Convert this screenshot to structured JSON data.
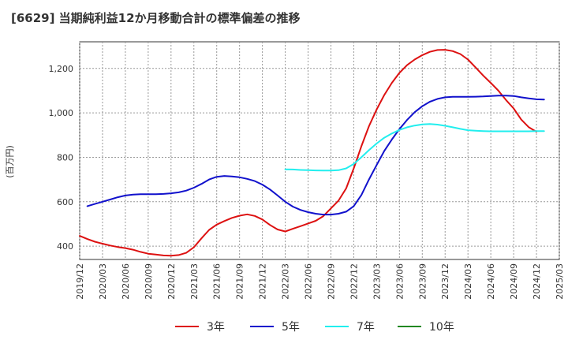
{
  "chart_data": {
    "type": "line",
    "title": "[6629]  当期純利益12か月移動合計の標準偏差の推移",
    "ylabel": "(百万円)",
    "xlabel": "",
    "ylim": [
      340,
      1320
    ],
    "yticks": [
      400,
      600,
      800,
      1000,
      1200
    ],
    "ytick_labels": [
      "400",
      "600",
      "800",
      "1,000",
      "1,200"
    ],
    "xticks": [
      "2019/12",
      "2020/03",
      "2020/06",
      "2020/09",
      "2020/12",
      "2021/03",
      "2021/06",
      "2021/09",
      "2021/12",
      "2022/03",
      "2022/06",
      "2022/09",
      "2022/12",
      "2023/03",
      "2023/06",
      "2023/09",
      "2023/12",
      "2024/03",
      "2024/06",
      "2024/09",
      "2024/12",
      "2025/03"
    ],
    "grid": true,
    "legend_position": "bottom",
    "series": [
      {
        "name": "3年",
        "color": "#dd1111",
        "points": [
          [
            "2019/12",
            446
          ],
          [
            "2020/01",
            432
          ],
          [
            "2020/02",
            420
          ],
          [
            "2020/03",
            411
          ],
          [
            "2020/04",
            403
          ],
          [
            "2020/05",
            396
          ],
          [
            "2020/06",
            391
          ],
          [
            "2020/07",
            384
          ],
          [
            "2020/08",
            374
          ],
          [
            "2020/09",
            366
          ],
          [
            "2020/10",
            362
          ],
          [
            "2020/11",
            358
          ],
          [
            "2020/12",
            357
          ],
          [
            "2021/01",
            360
          ],
          [
            "2021/02",
            370
          ],
          [
            "2021/03",
            395
          ],
          [
            "2021/04",
            435
          ],
          [
            "2021/05",
            473
          ],
          [
            "2021/06",
            497
          ],
          [
            "2021/07",
            513
          ],
          [
            "2021/08",
            527
          ],
          [
            "2021/09",
            537
          ],
          [
            "2021/10",
            543
          ],
          [
            "2021/11",
            536
          ],
          [
            "2021/12",
            520
          ],
          [
            "2022/01",
            495
          ],
          [
            "2022/02",
            475
          ],
          [
            "2022/03",
            466
          ],
          [
            "2022/04",
            478
          ],
          [
            "2022/05",
            490
          ],
          [
            "2022/06",
            502
          ],
          [
            "2022/07",
            514
          ],
          [
            "2022/08",
            535
          ],
          [
            "2022/09",
            570
          ],
          [
            "2022/10",
            605
          ],
          [
            "2022/11",
            660
          ],
          [
            "2022/12",
            750
          ],
          [
            "2023/01",
            850
          ],
          [
            "2023/02",
            940
          ],
          [
            "2023/03",
            1015
          ],
          [
            "2023/04",
            1080
          ],
          [
            "2023/05",
            1135
          ],
          [
            "2023/06",
            1180
          ],
          [
            "2023/07",
            1215
          ],
          [
            "2023/08",
            1240
          ],
          [
            "2023/09",
            1260
          ],
          [
            "2023/10",
            1275
          ],
          [
            "2023/11",
            1283
          ],
          [
            "2023/12",
            1284
          ],
          [
            "2024/01",
            1278
          ],
          [
            "2024/02",
            1265
          ],
          [
            "2024/03",
            1240
          ],
          [
            "2024/04",
            1205
          ],
          [
            "2024/05",
            1168
          ],
          [
            "2024/06",
            1135
          ],
          [
            "2024/07",
            1100
          ],
          [
            "2024/08",
            1058
          ],
          [
            "2024/09",
            1020
          ],
          [
            "2024/10",
            970
          ],
          [
            "2024/11",
            935
          ],
          [
            "2024/12",
            915
          ]
        ]
      },
      {
        "name": "5年",
        "color": "#1111cc",
        "points": [
          [
            "2020/01",
            580
          ],
          [
            "2020/02",
            590
          ],
          [
            "2020/03",
            600
          ],
          [
            "2020/04",
            610
          ],
          [
            "2020/05",
            620
          ],
          [
            "2020/06",
            628
          ],
          [
            "2020/07",
            632
          ],
          [
            "2020/08",
            634
          ],
          [
            "2020/09",
            634
          ],
          [
            "2020/10",
            634
          ],
          [
            "2020/11",
            635
          ],
          [
            "2020/12",
            638
          ],
          [
            "2021/01",
            642
          ],
          [
            "2021/02",
            650
          ],
          [
            "2021/03",
            663
          ],
          [
            "2021/04",
            680
          ],
          [
            "2021/05",
            700
          ],
          [
            "2021/06",
            712
          ],
          [
            "2021/07",
            716
          ],
          [
            "2021/08",
            714
          ],
          [
            "2021/09",
            710
          ],
          [
            "2021/10",
            703
          ],
          [
            "2021/11",
            693
          ],
          [
            "2021/12",
            677
          ],
          [
            "2022/01",
            655
          ],
          [
            "2022/02",
            628
          ],
          [
            "2022/03",
            600
          ],
          [
            "2022/04",
            578
          ],
          [
            "2022/05",
            563
          ],
          [
            "2022/06",
            553
          ],
          [
            "2022/07",
            546
          ],
          [
            "2022/08",
            542
          ],
          [
            "2022/09",
            542
          ],
          [
            "2022/10",
            546
          ],
          [
            "2022/11",
            555
          ],
          [
            "2022/12",
            580
          ],
          [
            "2023/01",
            630
          ],
          [
            "2023/02",
            700
          ],
          [
            "2023/03",
            765
          ],
          [
            "2023/04",
            828
          ],
          [
            "2023/05",
            880
          ],
          [
            "2023/06",
            927
          ],
          [
            "2023/07",
            968
          ],
          [
            "2023/08",
            1003
          ],
          [
            "2023/09",
            1030
          ],
          [
            "2023/10",
            1050
          ],
          [
            "2023/11",
            1063
          ],
          [
            "2023/12",
            1070
          ],
          [
            "2024/01",
            1072
          ],
          [
            "2024/02",
            1072
          ],
          [
            "2024/03",
            1072
          ],
          [
            "2024/04",
            1073
          ],
          [
            "2024/05",
            1074
          ],
          [
            "2024/06",
            1076
          ],
          [
            "2024/07",
            1078
          ],
          [
            "2024/08",
            1078
          ],
          [
            "2024/09",
            1076
          ],
          [
            "2024/10",
            1070
          ],
          [
            "2024/11",
            1065
          ],
          [
            "2024/12",
            1061
          ],
          [
            "2025/01",
            1060
          ]
        ]
      },
      {
        "name": "7年",
        "color": "#22eeee",
        "points": [
          [
            "2022/03",
            746
          ],
          [
            "2022/04",
            745
          ],
          [
            "2022/05",
            743
          ],
          [
            "2022/06",
            742
          ],
          [
            "2022/07",
            741
          ],
          [
            "2022/08",
            740
          ],
          [
            "2022/09",
            740
          ],
          [
            "2022/10",
            742
          ],
          [
            "2022/11",
            750
          ],
          [
            "2022/12",
            770
          ],
          [
            "2023/01",
            800
          ],
          [
            "2023/02",
            832
          ],
          [
            "2023/03",
            862
          ],
          [
            "2023/04",
            888
          ],
          [
            "2023/05",
            907
          ],
          [
            "2023/06",
            923
          ],
          [
            "2023/07",
            935
          ],
          [
            "2023/08",
            943
          ],
          [
            "2023/09",
            948
          ],
          [
            "2023/10",
            950
          ],
          [
            "2023/11",
            947
          ],
          [
            "2023/12",
            942
          ],
          [
            "2024/01",
            935
          ],
          [
            "2024/02",
            928
          ],
          [
            "2024/03",
            922
          ],
          [
            "2024/04",
            920
          ],
          [
            "2024/05",
            918
          ],
          [
            "2024/06",
            917
          ],
          [
            "2024/07",
            917
          ],
          [
            "2024/08",
            917
          ],
          [
            "2024/09",
            917
          ],
          [
            "2024/10",
            917
          ],
          [
            "2024/11",
            917
          ],
          [
            "2024/12",
            918
          ],
          [
            "2025/01",
            918
          ]
        ]
      },
      {
        "name": "10年",
        "color": "#228822",
        "points": []
      }
    ]
  }
}
